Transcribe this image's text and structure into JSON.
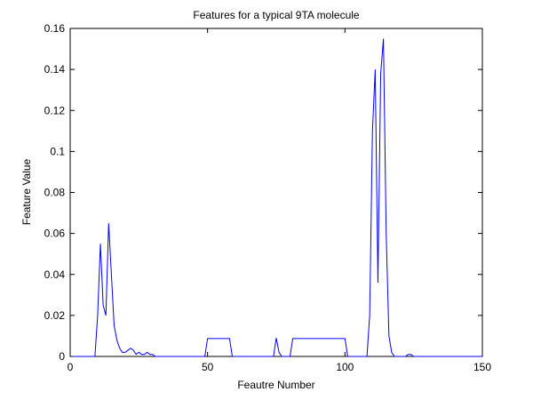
{
  "chart_data": {
    "type": "line",
    "title": "Features for a typical 9TA molecule",
    "xlabel": "Feautre Number",
    "ylabel": "Feature Value",
    "x": [
      1,
      9,
      10,
      11,
      12,
      13,
      14,
      15,
      16,
      17,
      18,
      19,
      20,
      21,
      22,
      23,
      24,
      25,
      26,
      27,
      28,
      29,
      30,
      31,
      49,
      50,
      58,
      59,
      74,
      75,
      76,
      77,
      80,
      81,
      100,
      101,
      108,
      109,
      110,
      111,
      112,
      113,
      114,
      115,
      116,
      117,
      118,
      122,
      123,
      124,
      125,
      150
    ],
    "series": [
      {
        "color": "#0000ff",
        "values": [
          0,
          0,
          0.02,
          0.055,
          0.025,
          0.02,
          0.065,
          0.04,
          0.015,
          0.008,
          0.004,
          0.002,
          0.002,
          0.003,
          0.004,
          0.003,
          0.001,
          0.002,
          0.001,
          0.001,
          0.002,
          0.001,
          0.001,
          0,
          0,
          0.0087,
          0.0087,
          0,
          0,
          0.009,
          0.002,
          0,
          0,
          0.0087,
          0.0087,
          0,
          0,
          0.02,
          0.11,
          0.14,
          0.036,
          0.138,
          0.155,
          0.06,
          0.01,
          0.002,
          0,
          0,
          0.001,
          0.001,
          0,
          0
        ]
      }
    ],
    "xlim": [
      0,
      150
    ],
    "xticks": [
      0,
      50,
      100,
      150
    ],
    "ylim": [
      0,
      0.16
    ],
    "yticks": [
      0,
      0.02,
      0.04,
      0.06,
      0.08,
      0.1,
      0.12,
      0.14,
      0.16
    ],
    "grid": false
  }
}
